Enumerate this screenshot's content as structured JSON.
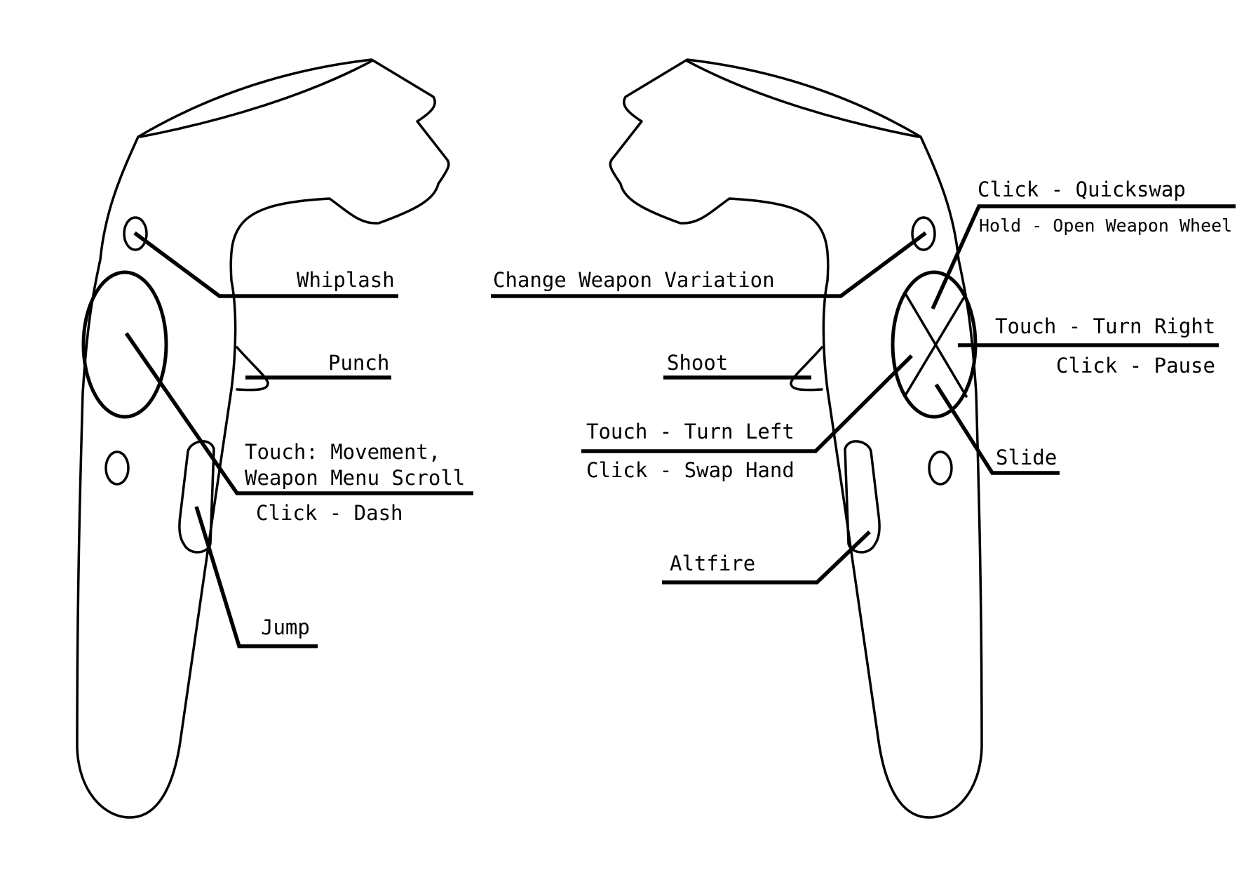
{
  "left_controller": {
    "labels": {
      "whiplash": "Whiplash",
      "punch": "Punch",
      "touch_line1": "Touch: Movement,",
      "touch_line2": "Weapon Menu Scroll",
      "click_dash": "Click - Dash",
      "jump": "Jump"
    }
  },
  "right_controller": {
    "labels": {
      "click_quickswap": "Click - Quickswap",
      "hold_wheel": "Hold - Open Weapon Wheel",
      "change_weapon": "Change Weapon Variation",
      "touch_turn_right": "Touch - Turn Right",
      "click_pause": "Click - Pause",
      "shoot": "Shoot",
      "touch_turn_left": "Touch - Turn Left",
      "click_swap_hand": "Click - Swap Hand",
      "slide": "Slide",
      "altfire": "Altfire"
    }
  },
  "colors": {
    "ink": "#000000",
    "background": "#ffffff"
  }
}
